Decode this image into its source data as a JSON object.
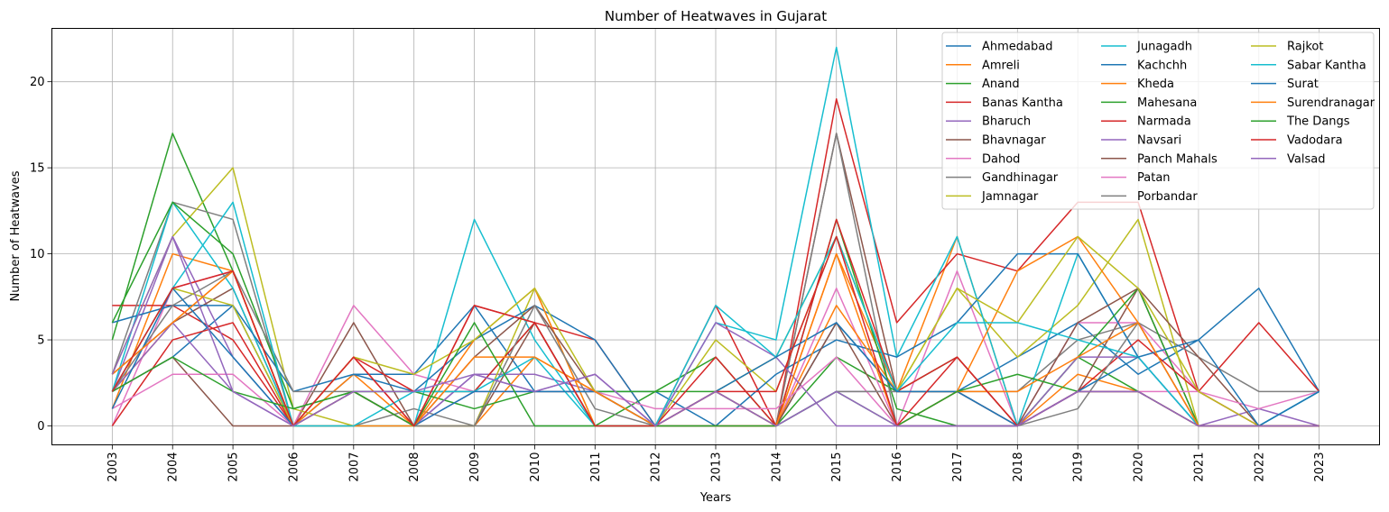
{
  "chart_data": {
    "type": "line",
    "title": "Number of Heatwaves in Gujarat",
    "xlabel": "Years",
    "ylabel": "Number of Heatwaves",
    "x": [
      "2003",
      "2004",
      "2005",
      "2006",
      "2007",
      "2008",
      "2009",
      "2010",
      "2011",
      "2012",
      "2013",
      "2014",
      "2015",
      "2016",
      "2017",
      "2018",
      "2019",
      "2020",
      "2021",
      "2022",
      "2023"
    ],
    "xlim": [
      2002,
      2024
    ],
    "ylim": [
      -1.1,
      23.1
    ],
    "yticks": [
      0,
      5,
      10,
      15,
      20
    ],
    "grid": true,
    "legend_position": "top-right",
    "legend_columns": 3,
    "series": [
      {
        "name": "Ahmedabad",
        "color": "#1f77b4",
        "values": [
          2,
          4,
          7,
          0,
          3,
          3,
          7,
          2,
          2,
          2,
          0,
          0,
          6,
          2,
          2,
          4,
          6,
          3,
          5,
          8,
          2
        ]
      },
      {
        "name": "Amreli",
        "color": "#ff7f0e",
        "values": [
          1,
          10,
          9,
          0,
          3,
          0,
          0,
          4,
          2,
          0,
          0,
          0,
          10,
          2,
          11,
          0,
          3,
          2,
          0,
          0,
          0
        ]
      },
      {
        "name": "Anand",
        "color": "#2ca02c",
        "values": [
          5,
          17,
          9,
          0,
          2,
          2,
          2,
          6,
          0,
          2,
          2,
          0,
          4,
          2,
          4,
          0,
          4,
          2,
          0,
          0,
          0
        ]
      },
      {
        "name": "Banas Kantha",
        "color": "#d62728",
        "values": [
          7,
          7,
          5,
          0,
          4,
          0,
          7,
          6,
          5,
          0,
          7,
          0,
          19,
          6,
          10,
          9,
          13,
          13,
          2,
          6,
          2
        ]
      },
      {
        "name": "Bharuch",
        "color": "#9467bd",
        "values": [
          2,
          11,
          4,
          0,
          2,
          0,
          3,
          3,
          2,
          0,
          0,
          0,
          2,
          2,
          2,
          0,
          2,
          2,
          0,
          0,
          0
        ]
      },
      {
        "name": "Bhavnagar",
        "color": "#8c564b",
        "values": [
          3,
          6,
          8,
          0,
          6,
          0,
          0,
          6,
          0,
          0,
          0,
          0,
          17,
          2,
          2,
          0,
          2,
          8,
          0,
          0,
          0
        ]
      },
      {
        "name": "Dahod",
        "color": "#e377c2",
        "values": [
          0,
          8,
          9,
          0,
          7,
          3,
          2,
          2,
          2,
          0,
          0,
          0,
          8,
          0,
          9,
          0,
          6,
          6,
          2,
          0,
          0
        ]
      },
      {
        "name": "Gandhinagar",
        "color": "#7f7f7f",
        "values": [
          3,
          13,
          12,
          0,
          0,
          1,
          0,
          0,
          0,
          0,
          0,
          0,
          17,
          0,
          2,
          2,
          5,
          6,
          4,
          2,
          2
        ]
      },
      {
        "name": "Jamnagar",
        "color": "#bcbd22",
        "values": [
          3,
          11,
          15,
          1,
          0,
          0,
          0,
          8,
          0,
          0,
          5,
          2,
          11,
          2,
          8,
          4,
          7,
          12,
          0,
          0,
          0
        ]
      },
      {
        "name": "Junagadh",
        "color": "#17becf",
        "values": [
          2,
          13,
          8,
          0,
          0,
          0,
          12,
          5,
          0,
          0,
          6,
          5,
          22,
          4,
          11,
          0,
          10,
          4,
          0,
          0,
          2
        ]
      },
      {
        "name": "Kachchh",
        "color": "#1f77b4",
        "values": [
          6,
          7,
          7,
          2,
          3,
          2,
          5,
          7,
          5,
          0,
          0,
          3,
          5,
          4,
          6,
          10,
          10,
          4,
          0,
          0,
          0
        ]
      },
      {
        "name": "Kheda",
        "color": "#ff7f0e",
        "values": [
          2,
          6,
          9,
          0,
          0,
          0,
          5,
          8,
          0,
          0,
          0,
          0,
          7,
          2,
          2,
          9,
          11,
          6,
          0,
          0,
          0
        ]
      },
      {
        "name": "Mahesana",
        "color": "#2ca02c",
        "values": [
          6,
          13,
          10,
          1,
          2,
          2,
          1,
          2,
          2,
          2,
          4,
          0,
          12,
          1,
          0,
          0,
          4,
          8,
          0,
          0,
          0
        ]
      },
      {
        "name": "Narmada",
        "color": "#d62728",
        "values": [
          0,
          5,
          6,
          0,
          4,
          2,
          2,
          6,
          0,
          0,
          4,
          0,
          12,
          2,
          4,
          0,
          2,
          5,
          2,
          0,
          0
        ]
      },
      {
        "name": "Navsari",
        "color": "#9467bd",
        "values": [
          2,
          6,
          2,
          0,
          2,
          0,
          3,
          2,
          3,
          0,
          6,
          4,
          0,
          0,
          0,
          0,
          4,
          4,
          0,
          1,
          0
        ]
      },
      {
        "name": "Panch Mahals",
        "color": "#8c564b",
        "values": [
          2,
          4,
          0,
          0,
          2,
          0,
          4,
          7,
          2,
          0,
          2,
          0,
          6,
          0,
          0,
          0,
          6,
          8,
          4,
          0,
          0
        ]
      },
      {
        "name": "Patan",
        "color": "#e377c2",
        "values": [
          1,
          3,
          3,
          0,
          2,
          0,
          2,
          2,
          2,
          1,
          1,
          1,
          4,
          0,
          2,
          0,
          2,
          2,
          2,
          1,
          2
        ]
      },
      {
        "name": "Porbandar",
        "color": "#7f7f7f",
        "values": [
          2,
          7,
          9,
          2,
          2,
          0,
          0,
          7,
          1,
          0,
          2,
          0,
          2,
          2,
          2,
          0,
          1,
          6,
          0,
          0,
          0
        ]
      },
      {
        "name": "Rajkot",
        "color": "#bcbd22",
        "values": [
          2,
          8,
          7,
          0,
          4,
          3,
          5,
          8,
          2,
          0,
          2,
          4,
          11,
          2,
          8,
          6,
          11,
          8,
          2,
          0,
          0
        ]
      },
      {
        "name": "Sabar Kantha",
        "color": "#17becf",
        "values": [
          2,
          8,
          13,
          0,
          0,
          2,
          2,
          4,
          0,
          0,
          7,
          4,
          11,
          2,
          6,
          6,
          5,
          4,
          0,
          0,
          2
        ]
      },
      {
        "name": "Surat",
        "color": "#1f77b4",
        "values": [
          1,
          8,
          4,
          0,
          2,
          0,
          2,
          2,
          2,
          0,
          2,
          4,
          6,
          2,
          2,
          0,
          2,
          4,
          5,
          0,
          2
        ]
      },
      {
        "name": "Surendranagar",
        "color": "#ff7f0e",
        "values": [
          3,
          6,
          9,
          0,
          2,
          0,
          4,
          4,
          2,
          0,
          2,
          0,
          10,
          0,
          2,
          2,
          4,
          6,
          0,
          0,
          0
        ]
      },
      {
        "name": "The Dangs",
        "color": "#2ca02c",
        "values": [
          2,
          4,
          2,
          1,
          2,
          0,
          6,
          0,
          0,
          0,
          0,
          0,
          2,
          0,
          2,
          3,
          2,
          2,
          0,
          0,
          0
        ]
      },
      {
        "name": "Vadodara",
        "color": "#d62728",
        "values": [
          2,
          8,
          9,
          0,
          4,
          0,
          7,
          6,
          0,
          0,
          2,
          2,
          11,
          0,
          4,
          0,
          2,
          2,
          0,
          0,
          0
        ]
      },
      {
        "name": "Valsad",
        "color": "#9467bd",
        "values": [
          3,
          11,
          2,
          0,
          2,
          2,
          3,
          2,
          3,
          0,
          2,
          0,
          2,
          0,
          0,
          0,
          2,
          2,
          0,
          0,
          0
        ]
      }
    ]
  }
}
